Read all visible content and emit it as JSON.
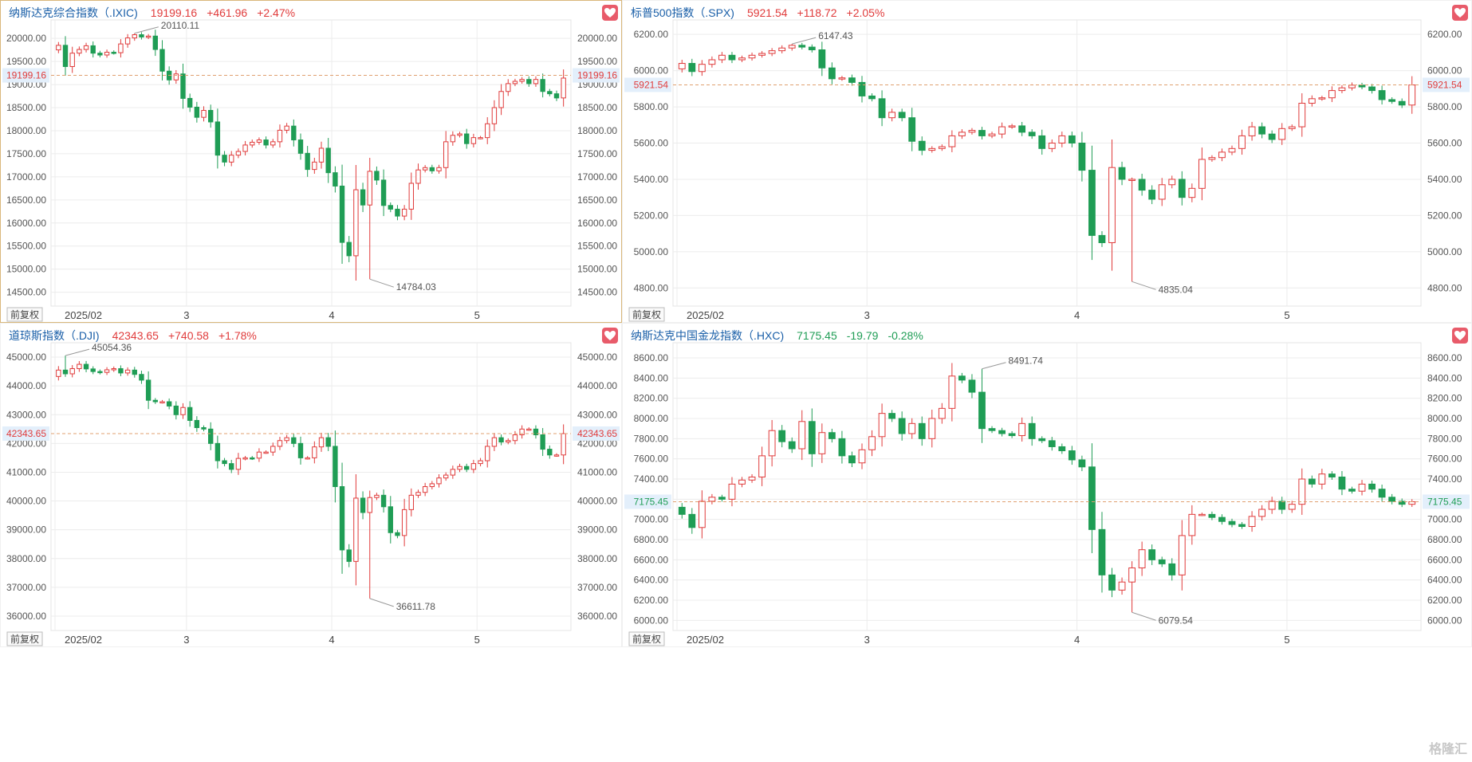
{
  "colors": {
    "up": "#e03b3b",
    "down": "#1f9d55",
    "grid": "#ececec",
    "axis_text": "#555",
    "accent_frame": "#d9b77a"
  },
  "watermark": "格隆汇",
  "panels": [
    {
      "name": "纳斯达克综合指数（.IXIC)",
      "price": "19199.16",
      "change": "+461.96",
      "pct": "+2.47%",
      "direction": "up",
      "adj_label": "前复权",
      "selected": true,
      "chart_data": {
        "type": "candlestick",
        "title": "纳斯达克综合指数（.IXIC)",
        "x_ticks": [
          {
            "i": 0,
            "label": "2025/02"
          },
          {
            "i": 19,
            "label": "3"
          },
          {
            "i": 40,
            "label": "4"
          },
          {
            "i": 61,
            "label": "5"
          }
        ],
        "y_ticks": [
          20000,
          19500,
          19000,
          18500,
          18000,
          17500,
          17000,
          16500,
          16000,
          15500,
          15000,
          14500
        ],
        "y_tick_labels": [
          "20000.00",
          "19500.00",
          "19000.00",
          "18500.00",
          "18000.00",
          "17500.00",
          "17000.00",
          "16500.00",
          "16000.00",
          "15500.00",
          "15000.00",
          "14500.00"
        ],
        "ylim": [
          14200,
          20400
        ],
        "last_value": 19199.16,
        "last_label": "19199.16",
        "max_label": "20110.11",
        "max_index": 11,
        "min_label": "14784.03",
        "min_index": 45,
        "values": [
          19850,
          19390,
          19680,
          19760,
          19840,
          19680,
          19640,
          19700,
          19690,
          19880,
          20010,
          20080,
          20030,
          20050,
          19760,
          19290,
          19100,
          19230,
          18700,
          18510,
          18290,
          18440,
          18190,
          17470,
          17320,
          17470,
          17550,
          17690,
          17750,
          17800,
          17690,
          17760,
          18010,
          18100,
          17800,
          17510,
          17160,
          17320,
          17620,
          17090,
          16800,
          15580,
          15290,
          16720,
          16390,
          17120,
          16930,
          16380,
          16300,
          16150,
          16300,
          16860,
          17150,
          17200,
          17130,
          17200,
          17760,
          17900,
          17930,
          17720,
          17850,
          17850,
          18150,
          18500,
          18850,
          19020,
          19070,
          19110,
          19020,
          19110,
          18850,
          18800,
          18710,
          19140
        ]
      }
    },
    {
      "name": "标普500指数（.SPX)",
      "price": "5921.54",
      "change": "+118.72",
      "pct": "+2.05%",
      "direction": "up",
      "adj_label": "前复权",
      "selected": false,
      "chart_data": {
        "type": "candlestick",
        "title": "标普500指数（.SPX)",
        "x_ticks": [
          {
            "i": 0,
            "label": "2025/02"
          },
          {
            "i": 19,
            "label": "3"
          },
          {
            "i": 40,
            "label": "4"
          },
          {
            "i": 61,
            "label": "5"
          }
        ],
        "y_ticks": [
          6200,
          6000,
          5800,
          5600,
          5400,
          5200,
          5000,
          4800
        ],
        "y_tick_labels": [
          "6200.00",
          "6000.00",
          "5800.00",
          "5600.00",
          "5400.00",
          "5200.00",
          "5000.00",
          "4800.00"
        ],
        "ylim": [
          4700,
          6280
        ],
        "last_value": 5921.54,
        "last_label": "5921.54",
        "max_label": "6147.43",
        "max_index": 11,
        "min_label": "4835.04",
        "min_index": 45,
        "values": [
          6040,
          5995,
          6035,
          6060,
          6085,
          6060,
          6070,
          6085,
          6095,
          6110,
          6125,
          6140,
          6130,
          6115,
          6015,
          5955,
          5960,
          5935,
          5860,
          5845,
          5740,
          5770,
          5740,
          5610,
          5560,
          5570,
          5580,
          5640,
          5660,
          5670,
          5640,
          5650,
          5690,
          5695,
          5660,
          5640,
          5570,
          5600,
          5640,
          5600,
          5450,
          5090,
          5050,
          5465,
          5400,
          5400,
          5340,
          5290,
          5370,
          5400,
          5300,
          5350,
          5510,
          5520,
          5550,
          5570,
          5640,
          5690,
          5650,
          5620,
          5680,
          5690,
          5820,
          5845,
          5850,
          5890,
          5905,
          5920,
          5910,
          5890,
          5840,
          5830,
          5810,
          5921
        ]
      }
    },
    {
      "name": "道琼斯指数（.DJI)",
      "price": "42343.65",
      "change": "+740.58",
      "pct": "+1.78%",
      "direction": "up",
      "adj_label": "前复权",
      "selected": false,
      "chart_data": {
        "type": "candlestick",
        "title": "道琼斯指数（.DJI)",
        "x_ticks": [
          {
            "i": 0,
            "label": "2025/02"
          },
          {
            "i": 19,
            "label": "3"
          },
          {
            "i": 40,
            "label": "4"
          },
          {
            "i": 61,
            "label": "5"
          }
        ],
        "y_ticks": [
          45000,
          44000,
          43000,
          42000,
          41000,
          40000,
          39000,
          38000,
          37000,
          36000
        ],
        "y_tick_labels": [
          "45000.00",
          "44000.00",
          "43000.00",
          "42000.00",
          "41000.00",
          "40000.00",
          "39000.00",
          "38000.00",
          "37000.00",
          "36000.00"
        ],
        "ylim": [
          35500,
          45500
        ],
        "last_value": 42343.65,
        "last_label": "42343.65",
        "max_label": "45054.36",
        "max_index": 1,
        "min_label": "36611.78",
        "min_index": 45,
        "values": [
          44550,
          44420,
          44600,
          44750,
          44590,
          44500,
          44470,
          44560,
          44600,
          44450,
          44550,
          44400,
          44200,
          43500,
          43450,
          43450,
          43300,
          43000,
          43250,
          42800,
          42550,
          42500,
          42000,
          41400,
          41300,
          41100,
          41480,
          41500,
          41490,
          41700,
          41700,
          41900,
          42100,
          42200,
          42000,
          41500,
          41500,
          41880,
          42200,
          41900,
          40500,
          38300,
          37900,
          40100,
          39600,
          40120,
          40200,
          39800,
          38900,
          38800,
          39700,
          40200,
          40300,
          40500,
          40600,
          40800,
          40900,
          41100,
          41200,
          41100,
          41300,
          41400,
          41900,
          42200,
          42050,
          42100,
          42300,
          42500,
          42500,
          42300,
          41800,
          41600,
          41600,
          42343
        ]
      }
    },
    {
      "name": "纳斯达克中国金龙指数（.HXC)",
      "price": "7175.45",
      "change": "-19.79",
      "pct": "-0.28%",
      "direction": "down",
      "adj_label": "前复权",
      "selected": false,
      "chart_data": {
        "type": "candlestick",
        "title": "纳斯达克中国金龙指数（.HXC)",
        "x_ticks": [
          {
            "i": 0,
            "label": "2025/02"
          },
          {
            "i": 19,
            "label": "3"
          },
          {
            "i": 40,
            "label": "4"
          },
          {
            "i": 61,
            "label": "5"
          }
        ],
        "y_ticks": [
          8600,
          8400,
          8200,
          8000,
          7800,
          7600,
          7400,
          7200,
          7000,
          6800,
          6600,
          6400,
          6200,
          6000
        ],
        "y_tick_labels": [
          "8600.00",
          "8400.00",
          "8200.00",
          "8000.00",
          "7800.00",
          "7600.00",
          "7400.00",
          "7200.00",
          "7000.00",
          "6800.00",
          "6600.00",
          "6400.00",
          "6200.00",
          "6000.00"
        ],
        "ylim": [
          5900,
          8750
        ],
        "last_value": 7175.45,
        "last_label": "7175.45",
        "max_label": "8491.74",
        "max_index": 30,
        "min_label": "6079.54",
        "min_index": 45,
        "values": [
          7050,
          6920,
          7180,
          7220,
          7200,
          7350,
          7390,
          7420,
          7630,
          7880,
          7770,
          7700,
          7970,
          7650,
          7860,
          7800,
          7630,
          7560,
          7690,
          7820,
          8050,
          8000,
          7850,
          7950,
          7800,
          8000,
          8100,
          8420,
          8380,
          8260,
          7900,
          7880,
          7850,
          7830,
          7950,
          7800,
          7780,
          7720,
          7680,
          7590,
          7520,
          6900,
          6450,
          6300,
          6380,
          6520,
          6700,
          6600,
          6560,
          6450,
          6840,
          7050,
          7050,
          7020,
          6980,
          6950,
          6930,
          7030,
          7100,
          7180,
          7100,
          7150,
          7400,
          7350,
          7450,
          7420,
          7300,
          7280,
          7350,
          7300,
          7220,
          7180,
          7150,
          7175
        ]
      }
    }
  ]
}
